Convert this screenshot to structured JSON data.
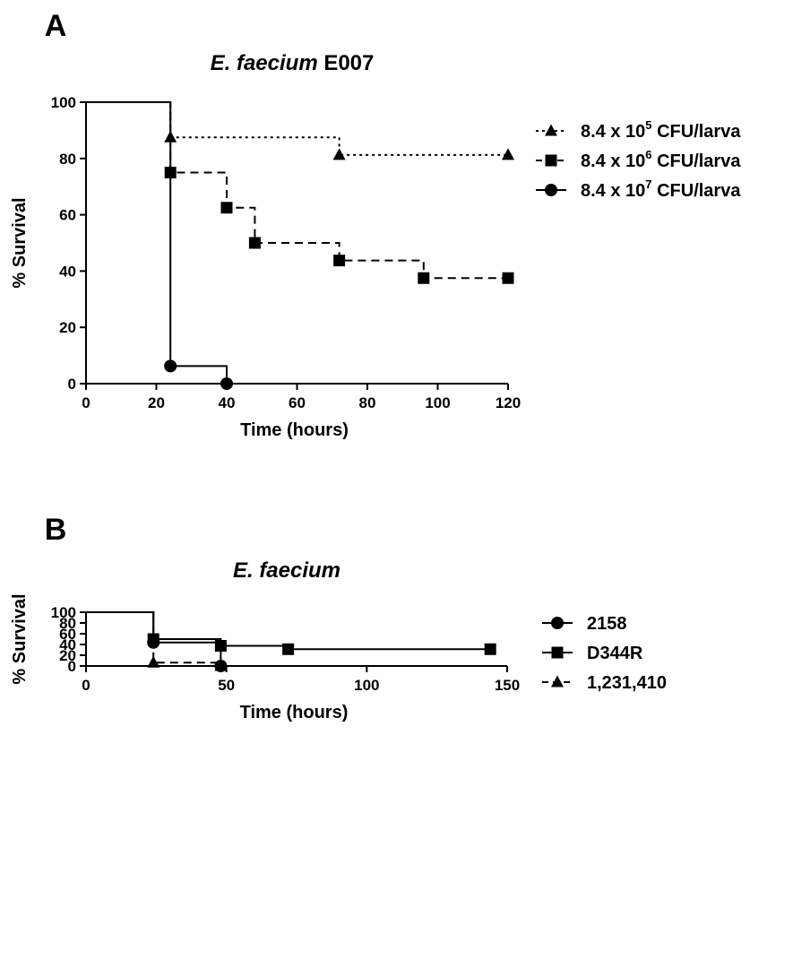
{
  "chart_data": [
    {
      "type": "line",
      "panel": "A",
      "title": "E. faecium",
      "title_suffix": "E007",
      "xlabel": "Time (hours)",
      "ylabel": "% Survival",
      "xlim": [
        0,
        120
      ],
      "ylim": [
        0,
        100
      ],
      "xticks": [
        0,
        20,
        40,
        60,
        80,
        100,
        120
      ],
      "yticks": [
        0,
        20,
        40,
        60,
        80,
        100
      ],
      "grid": false,
      "legend_position": "right",
      "series": [
        {
          "name": "8.4 x 10^5 CFU/larva",
          "label_base": "8.4 x 10",
          "label_exp": "5",
          "label_tail": " CFU/larva",
          "marker": "triangle",
          "dash": "dotted",
          "steps": [
            [
              0,
              100
            ],
            [
              24,
              87.5
            ],
            [
              72,
              81.25
            ],
            [
              120,
              81.25
            ]
          ],
          "markers": [
            [
              24,
              87.5
            ],
            [
              72,
              81.25
            ],
            [
              120,
              81.25
            ]
          ]
        },
        {
          "name": "8.4 x 10^6 CFU/larva",
          "label_base": "8.4 x 10",
          "label_exp": "6",
          "label_tail": " CFU/larva",
          "marker": "square",
          "dash": "dashed",
          "steps": [
            [
              0,
              100
            ],
            [
              24,
              75
            ],
            [
              40,
              62.5
            ],
            [
              48,
              50
            ],
            [
              72,
              43.75
            ],
            [
              96,
              37.5
            ],
            [
              120,
              37.5
            ]
          ],
          "markers": [
            [
              24,
              75
            ],
            [
              40,
              62.5
            ],
            [
              48,
              50
            ],
            [
              72,
              43.75
            ],
            [
              96,
              37.5
            ],
            [
              120,
              37.5
            ]
          ]
        },
        {
          "name": "8.4 x 10^7 CFU/larva",
          "label_base": "8.4 x 10",
          "label_exp": "7",
          "label_tail": " CFU/larva",
          "marker": "circle",
          "dash": "solid",
          "steps": [
            [
              0,
              100
            ],
            [
              24,
              6.25
            ],
            [
              40,
              0
            ]
          ],
          "markers": [
            [
              24,
              6.25
            ],
            [
              40,
              0
            ]
          ]
        }
      ]
    },
    {
      "type": "line",
      "panel": "B",
      "title": "E. faecium",
      "title_suffix": "",
      "xlabel": "Time (hours)",
      "ylabel": "% Survival",
      "xlim": [
        0,
        150
      ],
      "ylim": [
        0,
        100
      ],
      "xticks": [
        0,
        50,
        100,
        150
      ],
      "yticks": [
        0,
        20,
        40,
        60,
        80,
        100
      ],
      "grid": false,
      "legend_position": "right",
      "series": [
        {
          "name": "2158",
          "label_base": "2158",
          "label_exp": "",
          "label_tail": "",
          "marker": "circle",
          "dash": "solid",
          "steps": [
            [
              0,
              100
            ],
            [
              24,
              43.75
            ],
            [
              48,
              0
            ]
          ],
          "markers": [
            [
              24,
              43.75
            ],
            [
              48,
              0
            ]
          ]
        },
        {
          "name": "D344R",
          "label_base": "D344R",
          "label_exp": "",
          "label_tail": "",
          "marker": "square",
          "dash": "solid",
          "steps": [
            [
              0,
              100
            ],
            [
              24,
              50
            ],
            [
              48,
              37.5
            ],
            [
              72,
              31.25
            ],
            [
              144,
              31.25
            ]
          ],
          "markers": [
            [
              24,
              50
            ],
            [
              48,
              37.5
            ],
            [
              72,
              31.25
            ],
            [
              144,
              31.25
            ]
          ]
        },
        {
          "name": "1,231,410",
          "label_base": "1,231,410",
          "label_exp": "",
          "label_tail": "",
          "marker": "triangle",
          "dash": "dashed",
          "steps": [
            [
              0,
              100
            ],
            [
              24,
              6.25
            ],
            [
              48,
              0
            ]
          ],
          "markers": [
            [
              24,
              6.25
            ],
            [
              48,
              0
            ]
          ]
        }
      ]
    }
  ]
}
